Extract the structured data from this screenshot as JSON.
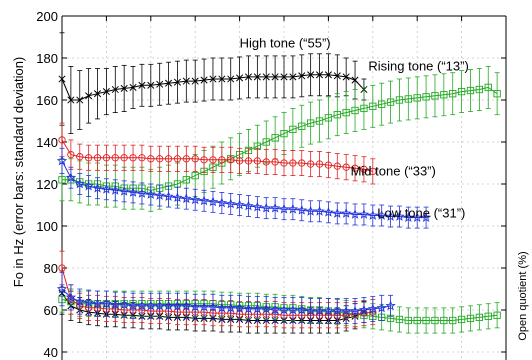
{
  "chart_data": {
    "type": "line",
    "title": "",
    "xlabel": "",
    "ylabel": "Fo in Hz (error bars: standard deviation)",
    "ylabel_right": "Open quotient (%)",
    "ylim": [
      40,
      200
    ],
    "xlim": [
      0,
      50
    ],
    "yticks": [
      40,
      60,
      80,
      100,
      120,
      140,
      160,
      180,
      200
    ],
    "ytick_labels": [
      "40",
      "60",
      "80",
      "100",
      "120",
      "140",
      "160",
      "180",
      "200"
    ],
    "grid": true,
    "legend": "none",
    "series": [
      {
        "name": "High tone (“55”)",
        "group": "Fo",
        "color": "#000000",
        "marker": "x",
        "x": [
          0,
          1,
          2,
          3,
          4,
          5,
          6,
          7,
          8,
          9,
          10,
          11,
          12,
          13,
          14,
          15,
          16,
          17,
          18,
          19,
          20,
          21,
          22,
          23,
          24,
          25,
          26,
          27,
          28,
          29,
          30,
          31,
          32,
          33,
          34
        ],
        "values": [
          170,
          160,
          160,
          162,
          163,
          164,
          165,
          165.5,
          166,
          167,
          167,
          167.5,
          168,
          168.5,
          169,
          169,
          169.5,
          170,
          170,
          170,
          170.5,
          171,
          171,
          171,
          171,
          171,
          171,
          171.5,
          172,
          172,
          172,
          171.5,
          171,
          169.5,
          165
        ],
        "sd": [
          22,
          16,
          14,
          13,
          12,
          11,
          11,
          11,
          10,
          10,
          10,
          10,
          10,
          10,
          10,
          10,
          10,
          10,
          10,
          10,
          10,
          10,
          10,
          10,
          10,
          10,
          10,
          10,
          10,
          10,
          10,
          10,
          9,
          9,
          5
        ]
      },
      {
        "name": "Rising tone (“13”)",
        "group": "Fo",
        "color": "#22aa22",
        "marker": "square",
        "x": [
          0,
          1,
          2,
          3,
          4,
          5,
          6,
          7,
          8,
          9,
          10,
          11,
          12,
          13,
          14,
          15,
          16,
          17,
          18,
          19,
          20,
          21,
          22,
          23,
          24,
          25,
          26,
          27,
          28,
          29,
          30,
          31,
          32,
          33,
          34,
          35,
          36,
          37,
          38,
          39,
          40,
          41,
          42,
          43,
          44,
          45,
          46,
          47,
          48,
          49
        ],
        "values": [
          122,
          122,
          121,
          120,
          120,
          119,
          119,
          118,
          118,
          118,
          117,
          118,
          119,
          120,
          122,
          124,
          126,
          128,
          130,
          132,
          134,
          136,
          138,
          140,
          142,
          144,
          146,
          147.5,
          149,
          150,
          151.5,
          153,
          154,
          155,
          156,
          157,
          158,
          159,
          160,
          160.5,
          161,
          161.5,
          162,
          162.5,
          163,
          164,
          164.5,
          165,
          166,
          163
        ],
        "sd": [
          10,
          10,
          10,
          10,
          10,
          10,
          10,
          10,
          10,
          10,
          10,
          10,
          10,
          10,
          10,
          10,
          10,
          10,
          10,
          10,
          10,
          10,
          10,
          10,
          10,
          10,
          10,
          10,
          10,
          10,
          10,
          10,
          10,
          10,
          10,
          10,
          10,
          10,
          10,
          10,
          10,
          10,
          10,
          10,
          10,
          10,
          10,
          10,
          10,
          10
        ]
      },
      {
        "name": "Mid tone (“33”)",
        "group": "Fo",
        "color": "#e02020",
        "marker": "circle",
        "x": [
          0,
          1,
          2,
          3,
          4,
          5,
          6,
          7,
          8,
          9,
          10,
          11,
          12,
          13,
          14,
          15,
          16,
          17,
          18,
          19,
          20,
          21,
          22,
          23,
          24,
          25,
          26,
          27,
          28,
          29,
          30,
          31,
          32,
          33,
          34,
          35
        ],
        "values": [
          141,
          134,
          133,
          132.5,
          132.5,
          132.5,
          132.5,
          132.5,
          132.5,
          132.5,
          132,
          132,
          132,
          132,
          132,
          132,
          131.5,
          131.5,
          131.5,
          131.5,
          131,
          131,
          131,
          130.5,
          130.5,
          130,
          130,
          130,
          129.5,
          129.5,
          129,
          128.5,
          128,
          127.5,
          127,
          126
        ],
        "sd": [
          8,
          7,
          6,
          6,
          6,
          6,
          6,
          6,
          6,
          6,
          6,
          6,
          6,
          6,
          6,
          6,
          6,
          6,
          6,
          6,
          6,
          6,
          6,
          6,
          6,
          6,
          6,
          6,
          6,
          6,
          6,
          6,
          6,
          6,
          6,
          6
        ]
      },
      {
        "name": "Low tone (“31”)",
        "group": "Fo",
        "color": "#2233dd",
        "marker": "star",
        "x": [
          0,
          1,
          2,
          3,
          4,
          5,
          6,
          7,
          8,
          9,
          10,
          11,
          12,
          13,
          14,
          15,
          16,
          17,
          18,
          19,
          20,
          21,
          22,
          23,
          24,
          25,
          26,
          27,
          28,
          29,
          30,
          31,
          32,
          33,
          34,
          35,
          36,
          37,
          38,
          39,
          40,
          41
        ],
        "values": [
          131,
          123,
          120,
          119,
          118,
          117.5,
          117,
          116.5,
          116,
          115.5,
          115,
          114.5,
          114,
          113.5,
          113,
          112.5,
          112,
          111.5,
          111,
          110.5,
          110,
          109.5,
          109,
          108.5,
          108.5,
          108,
          108,
          107.5,
          107,
          107,
          106.5,
          106,
          106,
          105.5,
          105.5,
          105,
          105,
          104.5,
          104.5,
          104,
          104,
          104
        ],
        "sd": [
          6,
          5,
          5,
          5,
          5,
          5,
          5,
          5,
          5,
          5,
          5,
          5,
          5,
          5,
          5,
          5,
          5,
          5,
          5,
          5,
          5,
          5,
          5,
          5,
          5,
          5,
          5,
          5,
          5,
          5,
          5,
          5,
          5,
          5,
          5,
          5,
          5,
          5,
          5,
          5,
          5,
          5
        ]
      },
      {
        "name": "",
        "group": "OQ",
        "color": "#000000",
        "marker": "x",
        "x": [
          0,
          1,
          2,
          3,
          4,
          5,
          6,
          7,
          8,
          9,
          10,
          11,
          12,
          13,
          14,
          15,
          16,
          17,
          18,
          19,
          20,
          21,
          22,
          23,
          24,
          25,
          26,
          27,
          28,
          29,
          30,
          31,
          32,
          33,
          34
        ],
        "values": [
          68,
          62,
          60,
          59,
          58.5,
          58,
          58,
          57.5,
          57.5,
          57,
          57,
          57,
          56.5,
          56.5,
          56.5,
          56,
          56,
          56,
          55.5,
          55.5,
          55.5,
          55,
          55,
          55,
          55,
          55,
          55,
          55,
          55,
          55,
          55,
          55,
          56,
          57,
          59
        ],
        "sd": [
          10,
          7,
          6,
          6,
          6,
          6,
          6,
          6,
          6,
          6,
          6,
          6,
          6,
          6,
          6,
          6,
          6,
          6,
          6,
          6,
          6,
          6,
          6,
          6,
          6,
          6,
          6,
          6,
          6,
          6,
          6,
          6,
          6,
          6,
          5
        ]
      },
      {
        "name": "",
        "group": "OQ",
        "color": "#22aa22",
        "marker": "square",
        "x": [
          0,
          1,
          2,
          3,
          4,
          5,
          6,
          7,
          8,
          9,
          10,
          11,
          12,
          13,
          14,
          15,
          16,
          17,
          18,
          19,
          20,
          21,
          22,
          23,
          24,
          25,
          26,
          27,
          28,
          29,
          30,
          31,
          32,
          33,
          34,
          35,
          36,
          37,
          38,
          39,
          40,
          41,
          42,
          43,
          44,
          45,
          46,
          47,
          48,
          49
        ],
        "values": [
          65,
          64,
          63,
          63,
          63,
          63,
          63,
          63,
          63,
          63,
          63,
          63,
          63,
          63,
          63,
          63,
          63,
          63,
          62.5,
          62.5,
          62,
          62,
          62,
          61.5,
          61.5,
          61,
          61,
          60.5,
          60,
          60,
          59.5,
          59,
          58.5,
          58,
          57.5,
          57,
          56.5,
          56,
          55.5,
          55,
          55,
          55,
          55,
          55,
          55,
          55.5,
          56,
          56.5,
          57,
          57.5
        ],
        "sd": [
          6,
          6,
          6,
          6,
          6,
          6,
          6,
          6,
          6,
          6,
          6,
          6,
          6,
          6,
          6,
          6,
          6,
          6,
          6,
          6,
          6,
          6,
          6,
          6,
          6,
          6,
          6,
          6,
          6,
          6,
          6,
          6,
          6,
          6,
          6,
          6,
          6,
          6,
          6,
          6,
          6,
          6,
          6,
          6,
          6,
          6,
          6,
          6,
          6,
          6
        ]
      },
      {
        "name": "",
        "group": "OQ",
        "color": "#e02020",
        "marker": "circle",
        "x": [
          0,
          1,
          2,
          3,
          4,
          5,
          6,
          7,
          8,
          9,
          10,
          11,
          12,
          13,
          14,
          15,
          16,
          17,
          18,
          19,
          20,
          21,
          22,
          23,
          24,
          25,
          26,
          27,
          28,
          29,
          30,
          31,
          32,
          33,
          34,
          35
        ],
        "values": [
          80,
          65,
          62,
          61,
          61,
          60.5,
          60.5,
          60,
          60,
          60,
          59.5,
          59.5,
          59.5,
          59,
          59,
          59,
          59,
          58.5,
          58.5,
          58.5,
          58,
          58,
          58,
          58,
          58,
          57.5,
          57.5,
          57.5,
          57.5,
          57.5,
          57.5,
          57.5,
          57.5,
          58,
          58.5,
          59
        ],
        "sd": [
          8,
          7,
          6,
          6,
          6,
          6,
          6,
          6,
          6,
          6,
          6,
          6,
          6,
          6,
          6,
          6,
          6,
          6,
          6,
          6,
          6,
          6,
          6,
          6,
          6,
          6,
          6,
          6,
          6,
          6,
          6,
          6,
          6,
          6,
          6,
          6
        ]
      },
      {
        "name": "",
        "group": "OQ",
        "color": "#2233dd",
        "marker": "star",
        "x": [
          0,
          1,
          2,
          3,
          4,
          5,
          6,
          7,
          8,
          9,
          10,
          11,
          12,
          13,
          14,
          15,
          16,
          17,
          18,
          19,
          20,
          21,
          22,
          23,
          24,
          25,
          26,
          27,
          28,
          29,
          30,
          31,
          32,
          33,
          34,
          35,
          36,
          37
        ],
        "values": [
          70,
          66,
          64,
          63.5,
          63,
          63,
          62.5,
          62.5,
          62,
          62,
          62,
          62,
          62,
          62,
          62,
          61.5,
          61.5,
          61.5,
          61,
          61,
          61,
          60.5,
          60.5,
          60.5,
          60,
          60,
          60,
          60,
          59.5,
          59.5,
          59.5,
          59.5,
          59.5,
          59.5,
          60,
          60.5,
          61,
          62
        ],
        "sd": [
          8,
          6,
          6,
          6,
          6,
          6,
          6,
          6,
          6,
          6,
          6,
          6,
          6,
          6,
          6,
          6,
          6,
          6,
          6,
          6,
          6,
          6,
          6,
          6,
          6,
          6,
          6,
          6,
          6,
          6,
          6,
          6,
          6,
          6,
          6,
          6,
          6,
          5
        ]
      }
    ],
    "annotations": [
      {
        "text": "High tone (“55”)",
        "x": 20,
        "y": 185
      },
      {
        "text": "Rising tone (“13”)",
        "x": 34.5,
        "y": 174
      },
      {
        "text": "Mid tone (“33”)",
        "x": 32.5,
        "y": 124
      },
      {
        "text": "Low tone (“31”)",
        "x": 35.5,
        "y": 104
      }
    ]
  }
}
